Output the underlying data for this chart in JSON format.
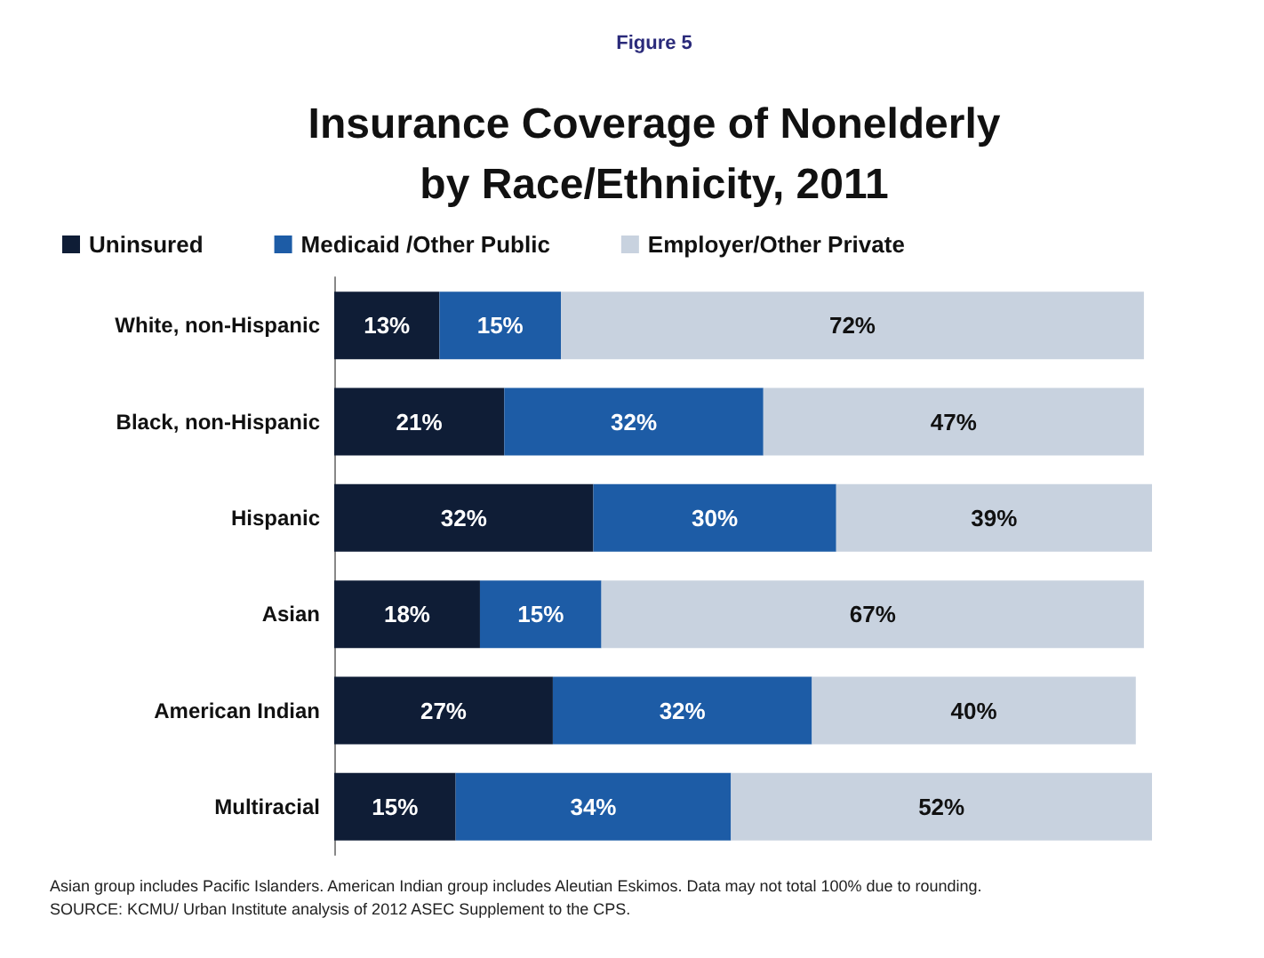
{
  "chart_data": {
    "type": "bar",
    "orientation": "horizontal",
    "stacked": true,
    "subtitle": "Figure 5",
    "title": "Insurance Coverage of Nonelderly\nby Race/Ethnicity, 2011",
    "categories": [
      "White, non-Hispanic",
      "Black, non-Hispanic",
      "Hispanic",
      "Asian",
      "American Indian",
      "Multiracial"
    ],
    "series": [
      {
        "name": "Uninsured",
        "color": "#0f1d36",
        "values": [
          13,
          21,
          32,
          18,
          27,
          15
        ],
        "value_labels": [
          "13%",
          "21%",
          "32%",
          "18%",
          "27%",
          "15%"
        ]
      },
      {
        "name": "Medicaid /Other Public",
        "color": "#1d5ca6",
        "values": [
          15,
          32,
          30,
          15,
          32,
          34
        ],
        "value_labels": [
          "15%",
          "32%",
          "30%",
          "15%",
          "32%",
          "34%"
        ]
      },
      {
        "name": "Employer/Other Private",
        "color": "#c8d2df",
        "values": [
          72,
          47,
          39,
          67,
          40,
          52
        ],
        "value_labels": [
          "72%",
          "47%",
          "39%",
          "67%",
          "40%",
          "52%"
        ]
      }
    ],
    "legend": "top left",
    "annotations": [
      "Asian group includes Pacific Islanders. American Indian group includes Aleutian Eskimos. Data may not total 100% due to rounding.",
      "SOURCE: KCMU/ Urban Institute analysis of 2012 ASEC Supplement to the CPS."
    ]
  }
}
